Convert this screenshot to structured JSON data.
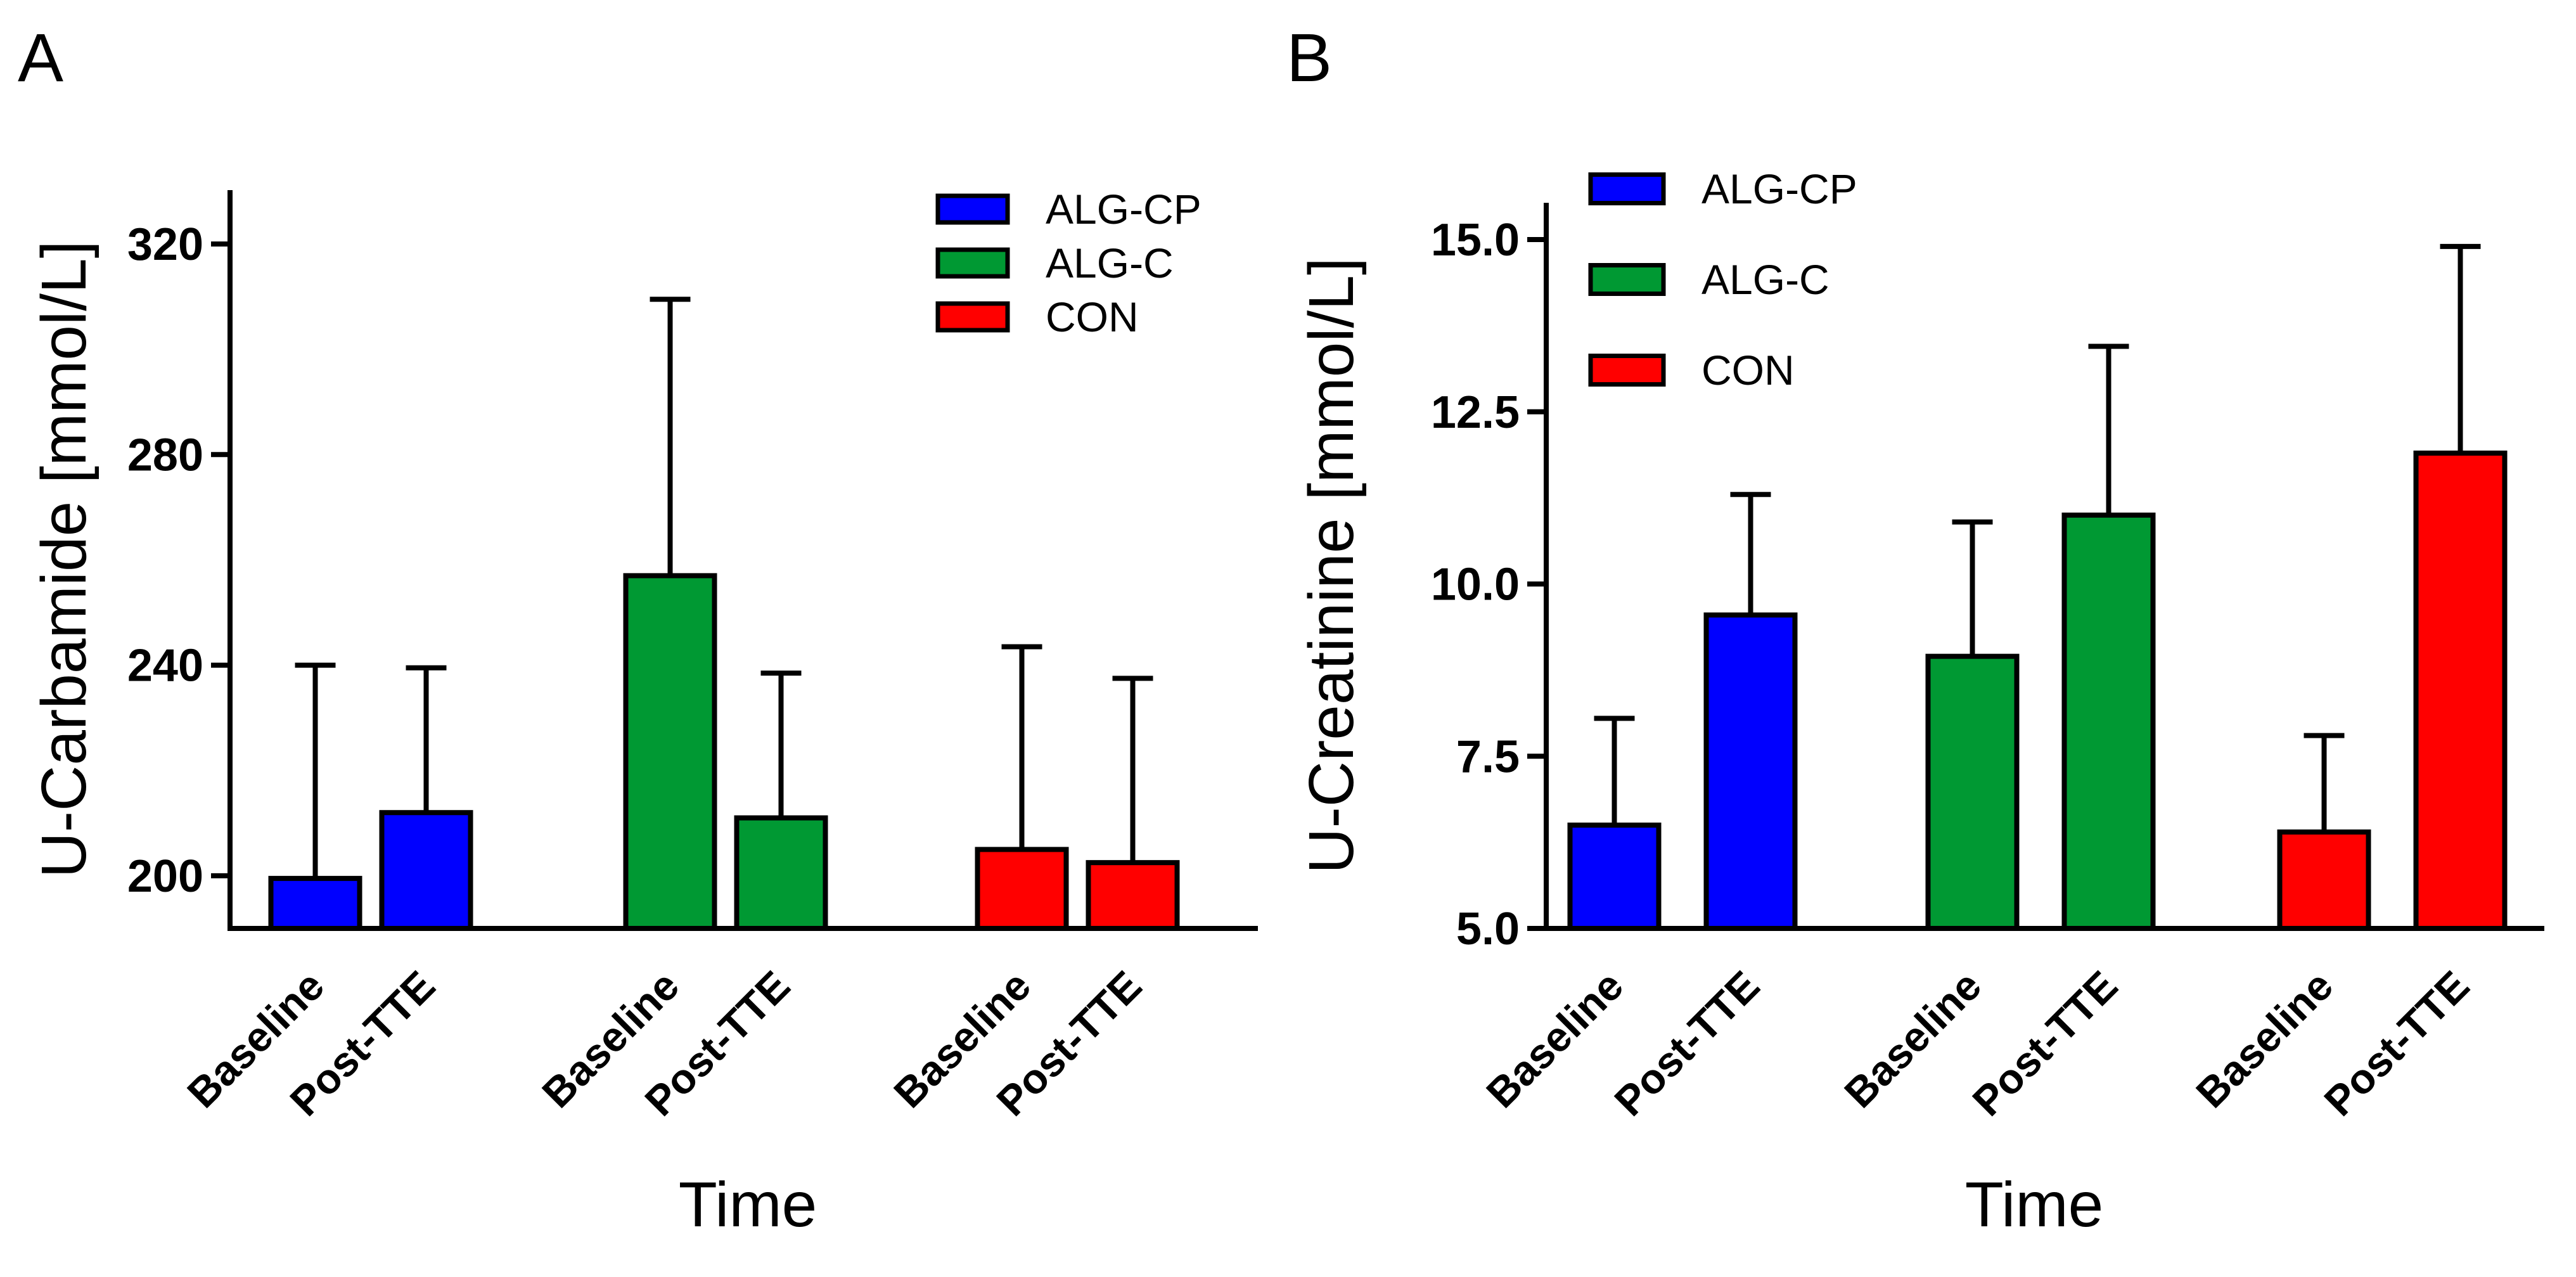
{
  "chart_data": [
    {
      "panel_label": "A",
      "type": "bar",
      "title": "",
      "xlabel": "Time",
      "ylabel": "U-Carbamide  [mmol/L]",
      "ylim": [
        190,
        320
      ],
      "yticks": [
        200,
        240,
        280,
        320
      ],
      "ytick_labels": [
        "200",
        "240",
        "280",
        "320"
      ],
      "legend": {
        "position": "top-right",
        "entries": [
          "ALG-CP",
          "ALG-C",
          "CON"
        ]
      },
      "groups": [
        {
          "name": "ALG-CP",
          "color": "#0000ff",
          "bars": [
            {
              "category": "Baseline",
              "value": 199.5,
              "error": 40.5
            },
            {
              "category": "Post-TTE",
              "value": 212.0,
              "error": 27.5
            }
          ]
        },
        {
          "name": "ALG-C",
          "color": "#009933",
          "bars": [
            {
              "category": "Baseline",
              "value": 257.0,
              "error": 52.5
            },
            {
              "category": "Post-TTE",
              "value": 211.0,
              "error": 27.5
            }
          ]
        },
        {
          "name": "CON",
          "color": "#ff0000",
          "bars": [
            {
              "category": "Baseline",
              "value": 205.0,
              "error": 38.5
            },
            {
              "category": "Post-TTE",
              "value": 202.5,
              "error": 35.0
            }
          ]
        }
      ]
    },
    {
      "panel_label": "B",
      "type": "bar",
      "title": "",
      "xlabel": "Time",
      "ylabel": "U-Creatinine  [mmol/L]",
      "ylim": [
        5.0,
        15.0
      ],
      "yticks": [
        5.0,
        7.5,
        10.0,
        12.5,
        15.0
      ],
      "ytick_labels": [
        "5.0",
        "7.5",
        "10.0",
        "12.5",
        "15.0"
      ],
      "legend": {
        "position": "top-left",
        "entries": [
          "ALG-CP",
          "ALG-C",
          "CON"
        ]
      },
      "groups": [
        {
          "name": "ALG-CP",
          "color": "#0000ff",
          "bars": [
            {
              "category": "Baseline",
              "value": 6.5,
              "error": 1.55
            },
            {
              "category": "Post-TTE",
              "value": 9.55,
              "error": 1.75
            }
          ]
        },
        {
          "name": "ALG-C",
          "color": "#009933",
          "bars": [
            {
              "category": "Baseline",
              "value": 8.95,
              "error": 1.95
            },
            {
              "category": "Post-TTE",
              "value": 11.0,
              "error": 2.45
            }
          ]
        },
        {
          "name": "CON",
          "color": "#ff0000",
          "bars": [
            {
              "category": "Baseline",
              "value": 6.4,
              "error": 1.4
            },
            {
              "category": "Post-TTE",
              "value": 11.9,
              "error": 3.0
            }
          ]
        }
      ]
    }
  ]
}
